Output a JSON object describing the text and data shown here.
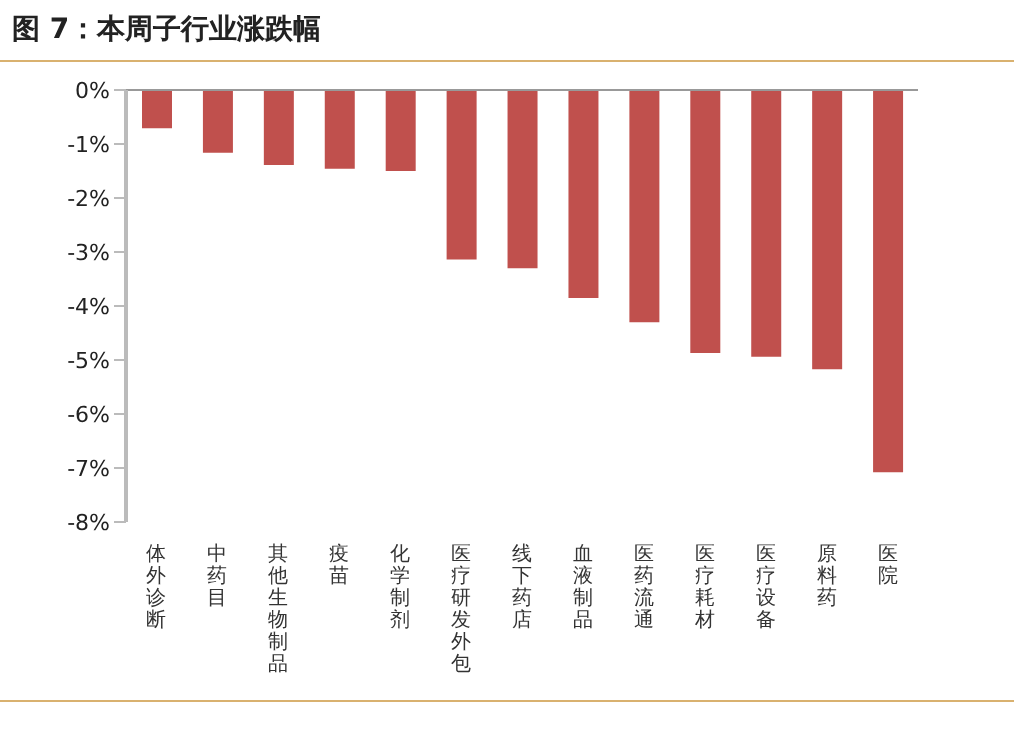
{
  "chart_data": {
    "type": "bar",
    "title": "图 7：本周子行业涨跌幅",
    "categories": [
      "体外诊断",
      "中药目",
      "其他生物制品",
      "疫苗",
      "化学制剂",
      "医疗研发外包",
      "线下药店",
      "血液制品",
      "医药流通",
      "医疗耗材",
      "医疗设备",
      "原料药",
      "医院"
    ],
    "values": [
      -0.71,
      -1.16,
      -1.39,
      -1.46,
      -1.5,
      -3.14,
      -3.3,
      -3.85,
      -4.3,
      -4.87,
      -4.94,
      -5.17,
      -7.08
    ],
    "color": "#c0504d",
    "ylim": [
      -8,
      0
    ],
    "yticks": [
      {
        "value": 0,
        "label": "0%"
      },
      {
        "value": -1,
        "label": "-1%"
      },
      {
        "value": -2,
        "label": "-2%"
      },
      {
        "value": -3,
        "label": "-3%"
      },
      {
        "value": -4,
        "label": "-4%"
      },
      {
        "value": -5,
        "label": "-5%"
      },
      {
        "value": -6,
        "label": "-6%"
      },
      {
        "value": -7,
        "label": "-7%"
      },
      {
        "value": -8,
        "label": "-8%"
      }
    ],
    "grid": false,
    "legend": false
  }
}
